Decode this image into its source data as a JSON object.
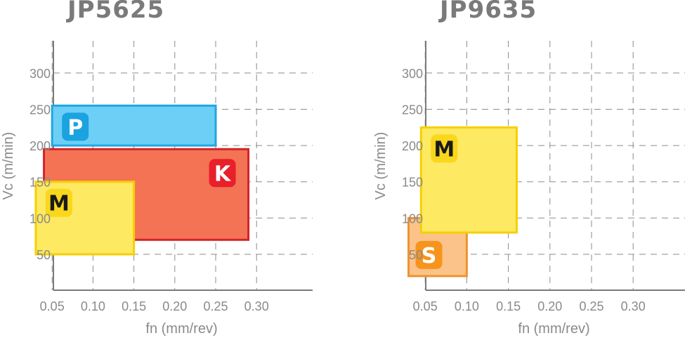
{
  "chart_data": [
    {
      "type": "area",
      "title": "JP5625",
      "xlabel": "fn (mm/rev)",
      "ylabel": "Vc (m/min)",
      "xticks": [
        "0.05",
        "0.10",
        "0.15",
        "0.20",
        "0.25",
        "0.30"
      ],
      "xtick_values": [
        0.05,
        0.1,
        0.15,
        0.2,
        0.25,
        0.3
      ],
      "yticks": [
        "50",
        "100",
        "150",
        "200",
        "250",
        "300"
      ],
      "ytick_values": [
        50,
        100,
        150,
        200,
        250,
        300
      ],
      "xlim": [
        0.0,
        0.32
      ],
      "ylim": [
        0,
        345
      ],
      "grid": true,
      "regions": [
        {
          "label": "P",
          "fn": [
            0.05,
            0.25
          ],
          "vc": [
            200,
            255
          ],
          "fill": "#6dcff6",
          "stroke": "#1fa7e1",
          "badge": "#1aa3e0",
          "letter_color": "#ffffff",
          "label_corner": "top-left"
        },
        {
          "label": "K",
          "fn": [
            0.04,
            0.29
          ],
          "vc": [
            70,
            195
          ],
          "fill": "#f47354",
          "stroke": "#d2232a",
          "badge": "#e8202a",
          "letter_color": "#ffffff",
          "label_corner": "top-right"
        },
        {
          "label": "M",
          "fn": [
            0.03,
            0.15
          ],
          "vc": [
            50,
            150
          ],
          "fill": "#fde962",
          "stroke": "#f5d000",
          "badge": "#f9d71c",
          "letter_color": "#1a1a1a",
          "label_corner": "top-left"
        }
      ]
    },
    {
      "type": "area",
      "title": "JP9635",
      "xlabel": "fn (mm/rev)",
      "ylabel": "Vc (m/min)",
      "xticks": [
        "0.05",
        "0.10",
        "0.15",
        "0.20",
        "0.25",
        "0.30"
      ],
      "xtick_values": [
        0.05,
        0.1,
        0.15,
        0.2,
        0.25,
        0.3
      ],
      "yticks": [
        "50",
        "100",
        "150",
        "200",
        "250",
        "300"
      ],
      "ytick_values": [
        50,
        100,
        150,
        200,
        250,
        300
      ],
      "xlim": [
        0.0,
        0.32
      ],
      "ylim": [
        0,
        345
      ],
      "grid": true,
      "regions": [
        {
          "label": "S",
          "fn": [
            0.03,
            0.1
          ],
          "vc": [
            20,
            100
          ],
          "fill": "#fbc38a",
          "stroke": "#f0922d",
          "badge": "#f7941d",
          "letter_color": "#ffffff",
          "label_corner": "bottom-left"
        },
        {
          "label": "M",
          "fn": [
            0.045,
            0.16
          ],
          "vc": [
            80,
            225
          ],
          "fill": "#fde962",
          "stroke": "#f5d000",
          "badge": "#f9d71c",
          "letter_color": "#1a1a1a",
          "label_corner": "top-left"
        }
      ]
    }
  ]
}
